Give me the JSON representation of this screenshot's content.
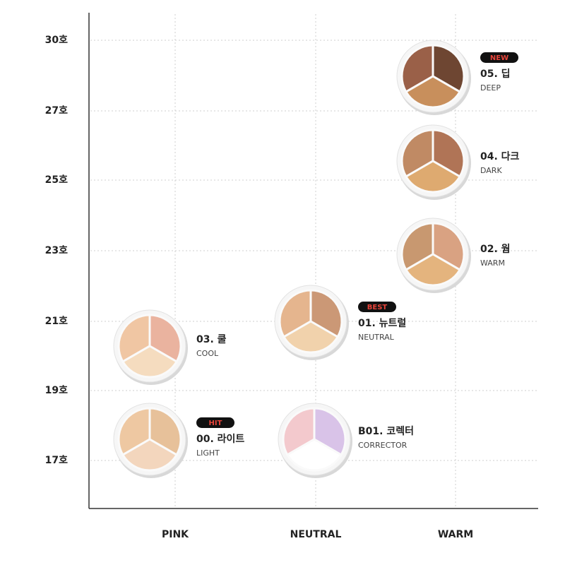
{
  "y_labels": [
    "30호",
    "27호",
    "25호",
    "23호",
    "21호",
    "19호",
    "17호"
  ],
  "x_labels": [
    "PINK",
    "NEUTRAL",
    "WARM"
  ],
  "products": [
    {
      "badge": "NEW",
      "name": "05. 딥",
      "sub": "DEEP"
    },
    {
      "name": "04. 다크",
      "sub": "DARK"
    },
    {
      "name": "02. 웜",
      "sub": "WARM"
    },
    {
      "badge": "BEST",
      "name": "01. 뉴트럴",
      "sub": "NEUTRAL"
    },
    {
      "name": "03. 쿨",
      "sub": "COOL"
    },
    {
      "badge": "HIT",
      "name": "00. 라이트",
      "sub": "LIGHT"
    },
    {
      "name": "B01. 코렉터",
      "sub": "CORRECTOR"
    }
  ]
}
